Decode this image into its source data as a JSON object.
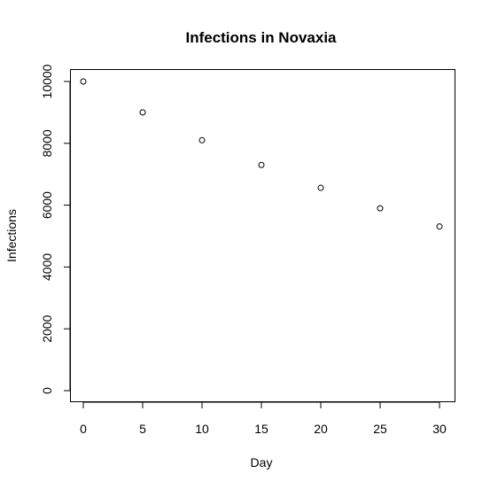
{
  "chart_data": {
    "type": "scatter",
    "title": "Infections in Novaxia",
    "xlabel": "Day",
    "ylabel": "Infections",
    "x": [
      0,
      5,
      10,
      15,
      20,
      25,
      30
    ],
    "y": [
      10000,
      9000,
      8100,
      7300,
      6560,
      5900,
      5310
    ],
    "xlim": [
      0,
      30
    ],
    "ylim": [
      0,
      10000
    ],
    "x_ticks": [
      "0",
      "5",
      "10",
      "15",
      "20",
      "25",
      "30"
    ],
    "y_ticks": [
      "0",
      "2000",
      "4000",
      "6000",
      "8000",
      "10000"
    ],
    "grid": false,
    "marker": "open-circle",
    "colors": {
      "points": "#000000",
      "background": "#ffffff"
    }
  }
}
